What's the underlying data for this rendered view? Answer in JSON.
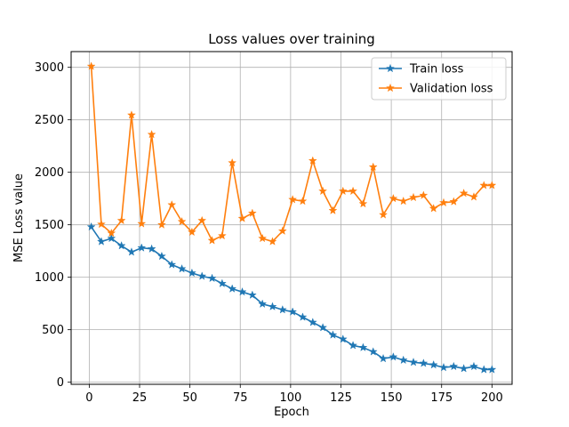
{
  "chart_data": {
    "type": "line",
    "title": "Loss values over training",
    "xlabel": "Epoch",
    "ylabel": "MSE Loss value",
    "xlim": [
      -9,
      210
    ],
    "ylim": [
      -20,
      3150
    ],
    "xticks": [
      0,
      25,
      50,
      75,
      100,
      125,
      150,
      175,
      200
    ],
    "yticks": [
      0,
      500,
      1000,
      1500,
      2000,
      2500,
      3000
    ],
    "grid": true,
    "legend_position": "top-right",
    "x": [
      1,
      6,
      11,
      16,
      21,
      26,
      31,
      36,
      41,
      46,
      51,
      56,
      61,
      66,
      71,
      76,
      81,
      86,
      91,
      96,
      101,
      106,
      111,
      116,
      121,
      126,
      131,
      136,
      141,
      146,
      151,
      156,
      161,
      166,
      171,
      176,
      181,
      186,
      191,
      196,
      200
    ],
    "series": [
      {
        "name": "Train loss",
        "color": "#1f77b4",
        "marker": "star",
        "values": [
          1480,
          1340,
          1370,
          1300,
          1240,
          1280,
          1270,
          1200,
          1120,
          1080,
          1040,
          1010,
          990,
          940,
          890,
          860,
          830,
          745,
          720,
          690,
          670,
          620,
          570,
          520,
          450,
          410,
          350,
          330,
          290,
          225,
          240,
          210,
          190,
          180,
          165,
          140,
          150,
          130,
          150,
          120,
          120
        ]
      },
      {
        "name": "Validation loss",
        "color": "#ff7f0e",
        "marker": "star",
        "values": [
          3010,
          1505,
          1420,
          1540,
          2545,
          1510,
          2360,
          1500,
          1690,
          1530,
          1430,
          1540,
          1350,
          1395,
          2090,
          1560,
          1610,
          1370,
          1340,
          1440,
          1740,
          1725,
          2110,
          1820,
          1635,
          1820,
          1820,
          1700,
          2050,
          1595,
          1750,
          1725,
          1760,
          1780,
          1655,
          1710,
          1720,
          1800,
          1765,
          1875,
          1875
        ]
      }
    ]
  }
}
